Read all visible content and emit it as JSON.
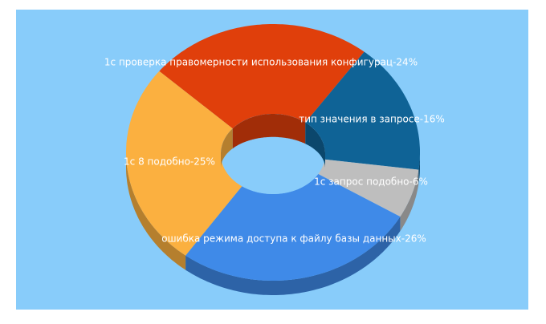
{
  "chart_data": {
    "type": "donut3d",
    "values": [
      24,
      16,
      6,
      26,
      25
    ],
    "value_labels": [
      "1c проверка правомерности использования конфигурац-24%",
      "тип значения в запросе-16%",
      "1c запрос подобно-6%",
      "ошибка режима доступа к файлу базы данных-26%",
      "1c 8 подобно-25%"
    ],
    "colors": [
      "#e03f0b",
      "#0f6396",
      "#bebebe",
      "#3f8ae8",
      "#fbb040"
    ]
  }
}
